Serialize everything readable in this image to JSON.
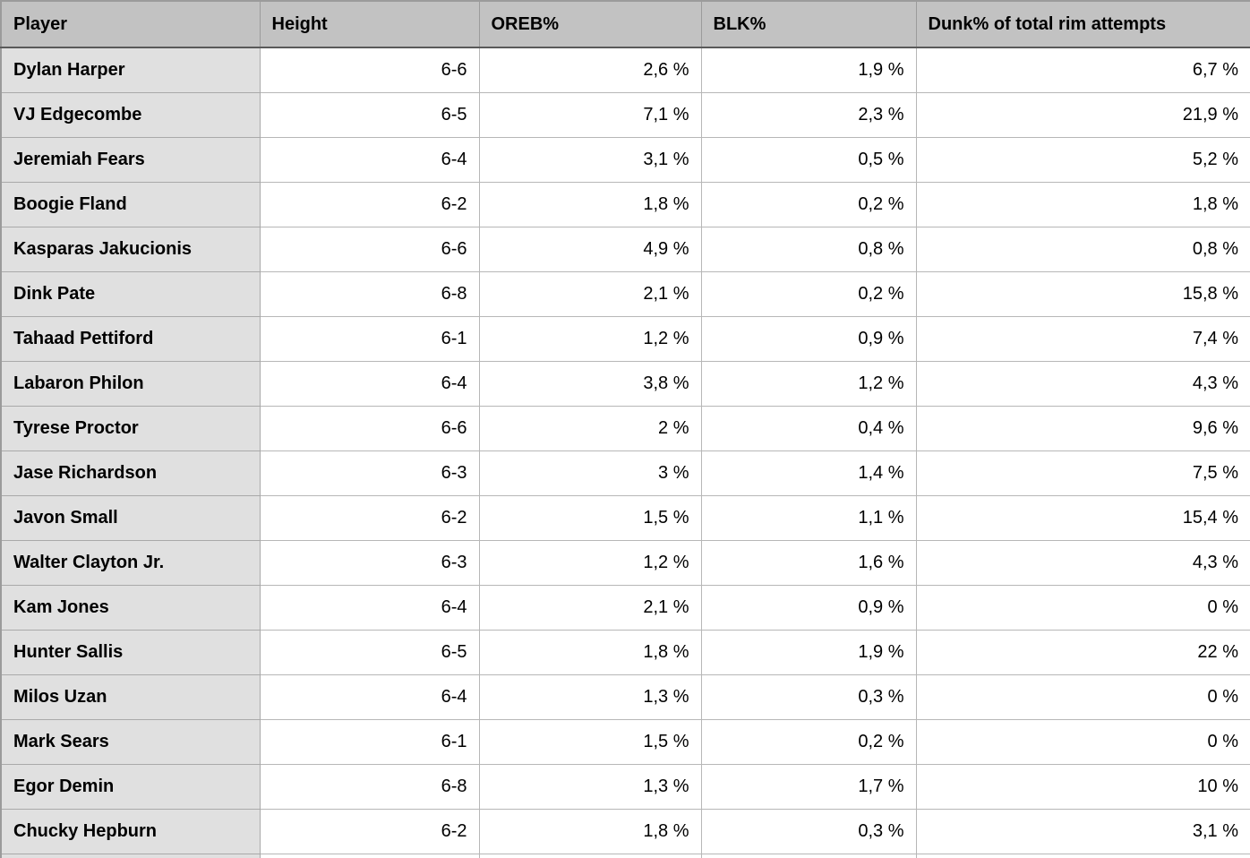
{
  "chart_data": {
    "type": "table",
    "title": "",
    "columns": [
      {
        "key": "player",
        "label": "Player"
      },
      {
        "key": "height",
        "label": "Height"
      },
      {
        "key": "oreb",
        "label": "OREB%"
      },
      {
        "key": "blk",
        "label": "BLK%"
      },
      {
        "key": "dunk",
        "label": "Dunk% of total rim attempts"
      }
    ],
    "rows": [
      {
        "player": "Dylan Harper",
        "height": "6-6",
        "oreb": "2,6 %",
        "blk": "1,9 %",
        "dunk": "6,7 %"
      },
      {
        "player": "VJ Edgecombe",
        "height": "6-5",
        "oreb": "7,1 %",
        "blk": "2,3 %",
        "dunk": "21,9 %"
      },
      {
        "player": "Jeremiah Fears",
        "height": "6-4",
        "oreb": "3,1 %",
        "blk": "0,5 %",
        "dunk": "5,2 %"
      },
      {
        "player": "Boogie Fland",
        "height": "6-2",
        "oreb": "1,8 %",
        "blk": "0,2 %",
        "dunk": "1,8 %"
      },
      {
        "player": "Kasparas Jakucionis",
        "height": "6-6",
        "oreb": "4,9 %",
        "blk": "0,8 %",
        "dunk": "0,8 %"
      },
      {
        "player": "Dink Pate",
        "height": "6-8",
        "oreb": "2,1 %",
        "blk": "0,2 %",
        "dunk": "15,8 %"
      },
      {
        "player": "Tahaad Pettiford",
        "height": "6-1",
        "oreb": "1,2 %",
        "blk": "0,9 %",
        "dunk": "7,4 %"
      },
      {
        "player": "Labaron Philon",
        "height": "6-4",
        "oreb": "3,8 %",
        "blk": "1,2 %",
        "dunk": "4,3 %"
      },
      {
        "player": "Tyrese Proctor",
        "height": "6-6",
        "oreb": "2 %",
        "blk": "0,4 %",
        "dunk": "9,6 %"
      },
      {
        "player": "Jase Richardson",
        "height": "6-3",
        "oreb": "3 %",
        "blk": "1,4 %",
        "dunk": "7,5 %"
      },
      {
        "player": "Javon Small",
        "height": "6-2",
        "oreb": "1,5 %",
        "blk": "1,1 %",
        "dunk": "15,4 %"
      },
      {
        "player": "Walter Clayton Jr.",
        "height": "6-3",
        "oreb": "1,2 %",
        "blk": "1,6 %",
        "dunk": "4,3 %"
      },
      {
        "player": "Kam Jones",
        "height": "6-4",
        "oreb": "2,1 %",
        "blk": "0,9 %",
        "dunk": "0 %"
      },
      {
        "player": "Hunter Sallis",
        "height": "6-5",
        "oreb": "1,8 %",
        "blk": "1,9 %",
        "dunk": "22 %"
      },
      {
        "player": "Milos Uzan",
        "height": "6-4",
        "oreb": "1,3 %",
        "blk": "0,3 %",
        "dunk": "0 %"
      },
      {
        "player": "Mark Sears",
        "height": "6-1",
        "oreb": "1,5 %",
        "blk": "0,2 %",
        "dunk": "0 %"
      },
      {
        "player": "Egor Demin",
        "height": "6-8",
        "oreb": "1,3 %",
        "blk": "1,7 %",
        "dunk": "10 %"
      },
      {
        "player": "Chucky Hepburn",
        "height": "6-2",
        "oreb": "1,8 %",
        "blk": "0,3 %",
        "dunk": "3,1 %"
      }
    ]
  },
  "colors": {
    "header_bg": "#c2c2c2",
    "row_label_bg": "#e0e0e0",
    "cell_bg": "#ffffff",
    "grid_line": "#b7b7b7",
    "label_grid_line": "#a9a9a9",
    "header_grid_line": "#9b9b9b",
    "header_divider": "#5a5a5a",
    "outer_border": "#9b9b9b",
    "text_color": "#000000"
  }
}
